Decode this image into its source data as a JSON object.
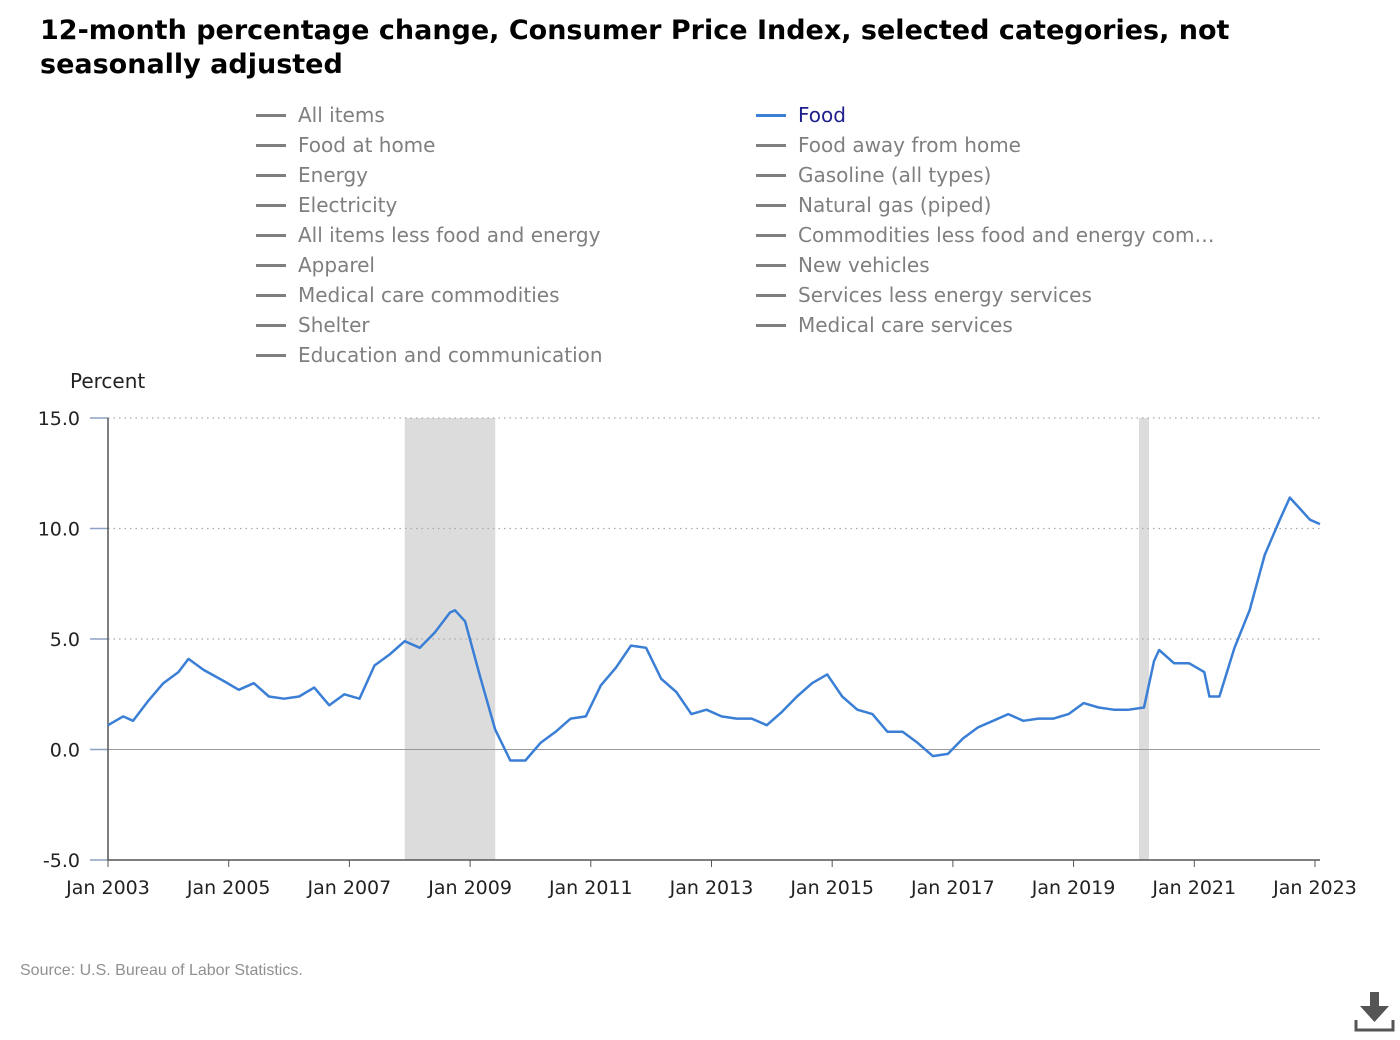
{
  "title": "12-month percentage change, Consumer Price Index, selected categories, not seasonally adjusted",
  "legend": {
    "items": [
      {
        "label": "All items",
        "active": false
      },
      {
        "label": "Food",
        "active": true
      },
      {
        "label": "Food at home",
        "active": false
      },
      {
        "label": "Food away from home",
        "active": false
      },
      {
        "label": "Energy",
        "active": false
      },
      {
        "label": "Gasoline (all types)",
        "active": false
      },
      {
        "label": "Electricity",
        "active": false
      },
      {
        "label": "Natural gas (piped)",
        "active": false
      },
      {
        "label": "All items less food and energy",
        "active": false
      },
      {
        "label": "Commodities less food and energy com…",
        "active": false
      },
      {
        "label": "Apparel",
        "active": false
      },
      {
        "label": "New vehicles",
        "active": false
      },
      {
        "label": "Medical care commodities",
        "active": false
      },
      {
        "label": "Services less energy services",
        "active": false
      },
      {
        "label": "Shelter",
        "active": false
      },
      {
        "label": "Medical care services",
        "active": false
      },
      {
        "label": "Education and communication",
        "active": false
      }
    ]
  },
  "source": "Source: U.S. Bureau of Labor Statistics.",
  "download_icon": "download-icon",
  "colors": {
    "series": "#3a7fd5",
    "active_legend_text": "#1e1e8c",
    "inactive_legend": "#7f7f7f",
    "recession_shading": "#dcdcdc",
    "gridline": "#aaaaaa"
  },
  "chart_data": {
    "type": "line",
    "title": "12-month percentage change, Consumer Price Index, selected categories, not seasonally adjusted",
    "ylabel": "Percent",
    "xlabel": "",
    "ylim": [
      -5.0,
      15.0
    ],
    "yticks": [
      "-5.0",
      "0.0",
      "5.0",
      "10.0",
      "15.0"
    ],
    "yticks_values": [
      -5,
      0,
      5,
      10,
      15
    ],
    "xlim": [
      "2003-01",
      "2023-02"
    ],
    "xticks": [
      "Jan 2003",
      "Jan 2005",
      "Jan 2007",
      "Jan 2009",
      "Jan 2011",
      "Jan 2013",
      "Jan 2015",
      "Jan 2017",
      "Jan 2019",
      "Jan 2021",
      "Jan 2023"
    ],
    "grid": "horizontal dotted",
    "shaded_periods": [
      {
        "start": "2007-12",
        "end": "2009-06"
      },
      {
        "start": "2020-02",
        "end": "2020-04"
      }
    ],
    "series": [
      {
        "name": "Food",
        "points": [
          [
            "2003-01",
            1.1
          ],
          [
            "2003-04",
            1.5
          ],
          [
            "2003-06",
            1.3
          ],
          [
            "2003-09",
            2.2
          ],
          [
            "2003-12",
            3.0
          ],
          [
            "2004-03",
            3.5
          ],
          [
            "2004-05",
            4.1
          ],
          [
            "2004-08",
            3.6
          ],
          [
            "2004-12",
            3.1
          ],
          [
            "2005-03",
            2.7
          ],
          [
            "2005-06",
            3.0
          ],
          [
            "2005-09",
            2.4
          ],
          [
            "2005-12",
            2.3
          ],
          [
            "2006-03",
            2.4
          ],
          [
            "2006-06",
            2.8
          ],
          [
            "2006-09",
            2.0
          ],
          [
            "2006-12",
            2.5
          ],
          [
            "2007-03",
            2.3
          ],
          [
            "2007-06",
            3.8
          ],
          [
            "2007-09",
            4.3
          ],
          [
            "2007-12",
            4.9
          ],
          [
            "2008-03",
            4.6
          ],
          [
            "2008-06",
            5.3
          ],
          [
            "2008-09",
            6.2
          ],
          [
            "2008-10",
            6.3
          ],
          [
            "2008-12",
            5.8
          ],
          [
            "2009-03",
            3.3
          ],
          [
            "2009-06",
            0.9
          ],
          [
            "2009-09",
            -0.5
          ],
          [
            "2009-12",
            -0.5
          ],
          [
            "2010-03",
            0.3
          ],
          [
            "2010-06",
            0.8
          ],
          [
            "2010-09",
            1.4
          ],
          [
            "2010-12",
            1.5
          ],
          [
            "2011-03",
            2.9
          ],
          [
            "2011-06",
            3.7
          ],
          [
            "2011-09",
            4.7
          ],
          [
            "2011-12",
            4.6
          ],
          [
            "2012-03",
            3.2
          ],
          [
            "2012-06",
            2.6
          ],
          [
            "2012-09",
            1.6
          ],
          [
            "2012-12",
            1.8
          ],
          [
            "2013-03",
            1.5
          ],
          [
            "2013-06",
            1.4
          ],
          [
            "2013-09",
            1.4
          ],
          [
            "2013-12",
            1.1
          ],
          [
            "2014-03",
            1.7
          ],
          [
            "2014-06",
            2.4
          ],
          [
            "2014-09",
            3.0
          ],
          [
            "2014-12",
            3.4
          ],
          [
            "2015-03",
            2.4
          ],
          [
            "2015-06",
            1.8
          ],
          [
            "2015-09",
            1.6
          ],
          [
            "2015-12",
            0.8
          ],
          [
            "2016-03",
            0.8
          ],
          [
            "2016-06",
            0.3
          ],
          [
            "2016-09",
            -0.3
          ],
          [
            "2016-12",
            -0.2
          ],
          [
            "2017-03",
            0.5
          ],
          [
            "2017-06",
            1.0
          ],
          [
            "2017-09",
            1.3
          ],
          [
            "2017-12",
            1.6
          ],
          [
            "2018-03",
            1.3
          ],
          [
            "2018-06",
            1.4
          ],
          [
            "2018-09",
            1.4
          ],
          [
            "2018-12",
            1.6
          ],
          [
            "2019-03",
            2.1
          ],
          [
            "2019-06",
            1.9
          ],
          [
            "2019-09",
            1.8
          ],
          [
            "2019-12",
            1.8
          ],
          [
            "2020-03",
            1.9
          ],
          [
            "2020-05",
            4.0
          ],
          [
            "2020-06",
            4.5
          ],
          [
            "2020-09",
            3.9
          ],
          [
            "2020-12",
            3.9
          ],
          [
            "2021-03",
            3.5
          ],
          [
            "2021-04",
            2.4
          ],
          [
            "2021-06",
            2.4
          ],
          [
            "2021-09",
            4.6
          ],
          [
            "2021-12",
            6.3
          ],
          [
            "2022-03",
            8.8
          ],
          [
            "2022-06",
            10.4
          ],
          [
            "2022-08",
            11.4
          ],
          [
            "2022-10",
            10.9
          ],
          [
            "2022-12",
            10.4
          ],
          [
            "2023-02",
            10.2
          ]
        ]
      }
    ]
  }
}
